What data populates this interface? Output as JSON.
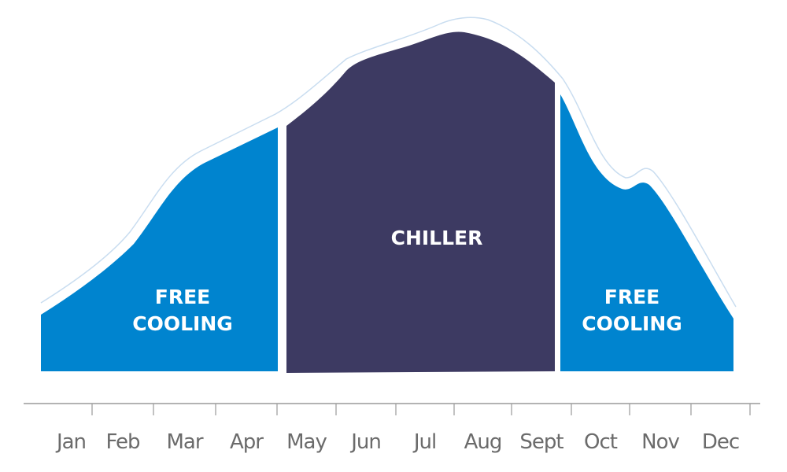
{
  "chart_data": {
    "type": "area",
    "title": "",
    "xlabel": "",
    "ylabel": "",
    "categories": [
      "Jan",
      "Feb",
      "Mar",
      "Apr",
      "May",
      "Jun",
      "Jul",
      "Aug",
      "Sept",
      "Oct",
      "Nov",
      "Dec"
    ],
    "regions": [
      {
        "label_line1": "FREE",
        "label_line2": "COOLING",
        "months": [
          "Jan",
          "Feb",
          "Mar",
          "Apr"
        ],
        "color": "#0084CF"
      },
      {
        "label_line1": "CHILLER",
        "label_line2": "",
        "months": [
          "May",
          "Jun",
          "Jul",
          "Aug",
          "Sept"
        ],
        "color": "#3D3A62"
      },
      {
        "label_line1": "FREE",
        "label_line2": "COOLING",
        "months": [
          "Oct",
          "Nov",
          "Dec"
        ],
        "color": "#0084CF"
      }
    ],
    "outline_color": "#C9DDF0",
    "axis_color": "#9a9a9a",
    "grid": false,
    "legend": "none"
  }
}
